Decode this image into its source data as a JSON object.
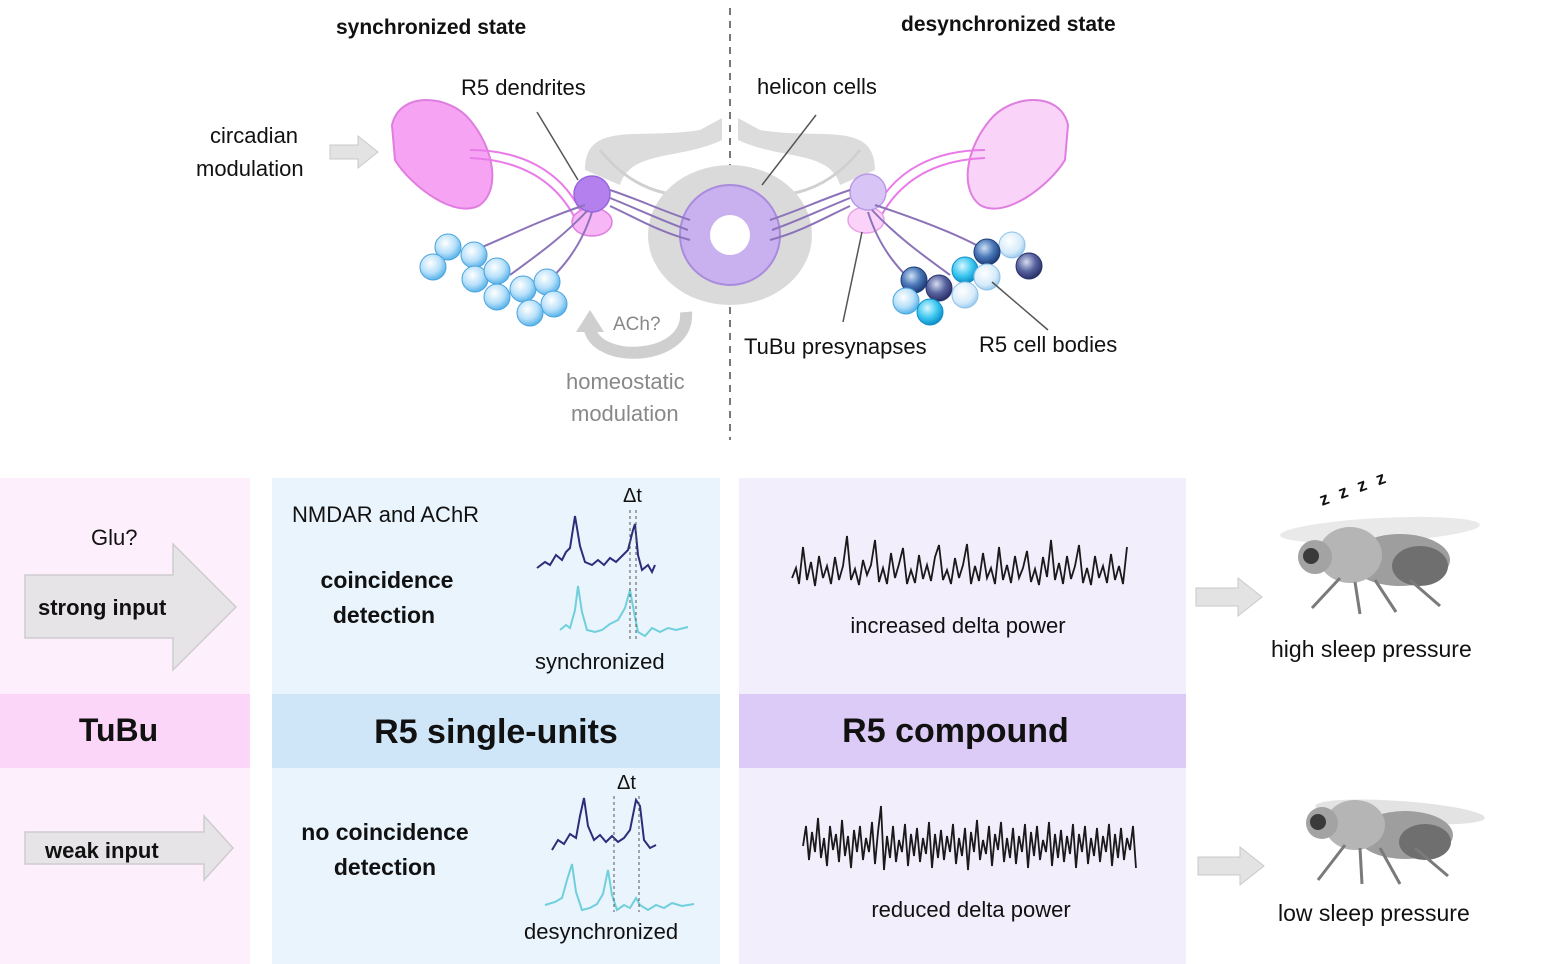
{
  "top": {
    "sync_title": "synchronized state",
    "desync_title": "desynchronized state",
    "circadian_line1": "circadian",
    "circadian_line2": "modulation",
    "r5_dendrites": "R5 dendrites",
    "helicon_cells": "helicon cells",
    "ach": "ACh?",
    "homeostatic_line1": "homeostatic",
    "homeostatic_line2": "modulation",
    "tubu_presynapses": "TuBu presynapses",
    "r5_cell_bodies": "R5 cell bodies"
  },
  "colors": {
    "pink": "#f29bf0",
    "pink_light": "#fbd3fa",
    "purple": "#c7a4f5",
    "blue_cell": "#a9d8f5",
    "panel_pink": "#fdf0fc",
    "panel_pink_band": "#fbd6f9",
    "panel_blue": "#eaf4fd",
    "panel_blue_band": "#cfe6f8",
    "panel_purple": "#f3eefc",
    "panel_purple_band": "#dccbf6",
    "dark_trace": "#2b2d7a",
    "cyan_trace": "#6fd0dc"
  },
  "tubu": {
    "glu": "Glu?",
    "strong_input": "strong input",
    "band_label": "TuBu",
    "weak_input": "weak input"
  },
  "single_units": {
    "receptors": "NMDAR and AChR",
    "coincidence_line1": "coincidence",
    "coincidence_line2": "detection",
    "delta_t_top": "Δt",
    "synchronized": "synchronized",
    "band_label": "R5 single-units",
    "no_coincidence_line1": "no coincidence",
    "no_coincidence_line2": "detection",
    "delta_t_bottom": "Δt",
    "desynchronized": "desynchronized"
  },
  "compound": {
    "increased": "increased delta power",
    "band_label": "R5 compound",
    "reduced": "reduced delta power"
  },
  "outcome": {
    "zzz": "z z z z",
    "high": "high sleep pressure",
    "low": "low sleep pressure"
  }
}
